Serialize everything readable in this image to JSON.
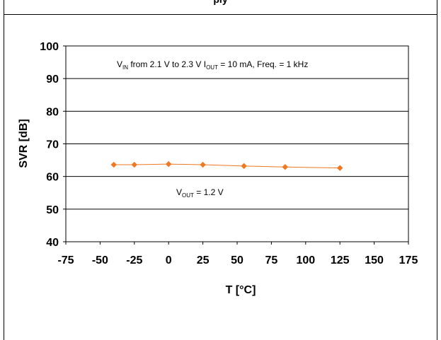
{
  "header": {
    "cutoff_title": "ply"
  },
  "chart_data": {
    "type": "line",
    "xlabel": "T [°C]",
    "ylabel": "SVR [dB]",
    "xlim": [
      -75,
      175
    ],
    "ylim": [
      40,
      100
    ],
    "xticks": [
      -75,
      -50,
      -25,
      0,
      25,
      50,
      75,
      100,
      125,
      150,
      175
    ],
    "yticks": [
      40,
      50,
      60,
      70,
      80,
      90,
      100
    ],
    "grid": "horizontal",
    "series": [
      {
        "color": "#f07820",
        "x": [
          -40,
          -25,
          0,
          25,
          55,
          85,
          125
        ],
        "values": [
          63.6,
          63.6,
          63.8,
          63.6,
          63.2,
          62.9,
          62.6
        ]
      }
    ],
    "annotations": {
      "conditions": {
        "vin_main": "V",
        "vin_sub": "IN",
        "vin_rest": " from 2.1 V to 2.3 V I",
        "iout_sub": "OUT",
        "iout_rest": " = 10 mA, Freq. = 1 kHz"
      },
      "vout": {
        "main": "V",
        "sub": "OUT",
        "rest": " = 1.2 V"
      }
    }
  }
}
